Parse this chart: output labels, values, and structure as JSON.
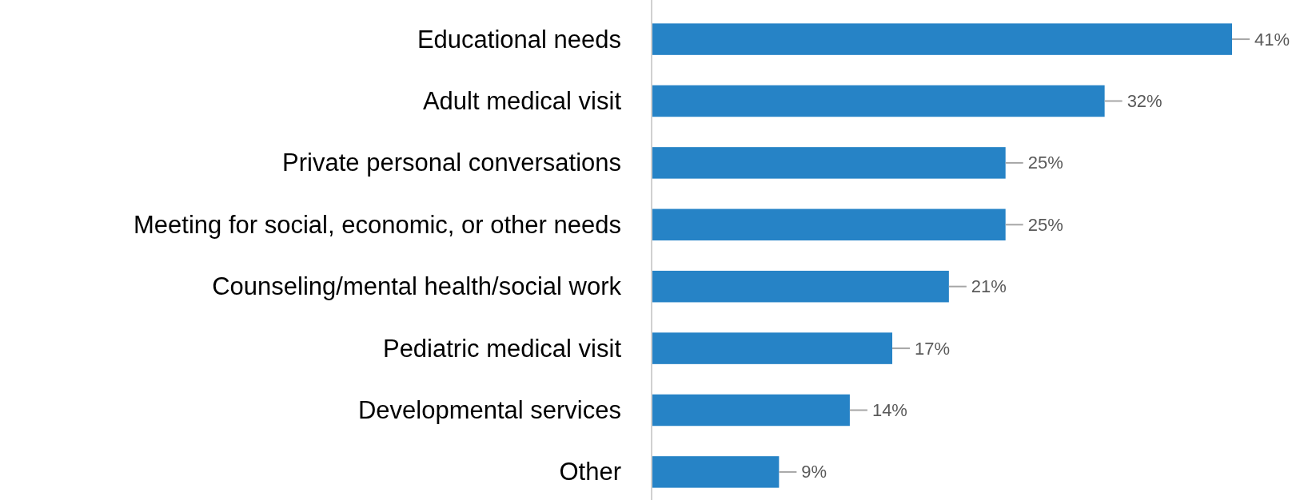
{
  "chart_data": {
    "type": "bar",
    "orientation": "horizontal",
    "categories": [
      "Educational needs",
      "Adult medical visit",
      "Private personal conversations",
      "Meeting for social, economic, or other needs",
      "Counseling/mental health/social work",
      "Pediatric medical visit",
      "Developmental services",
      "Other"
    ],
    "values": [
      41,
      32,
      25,
      25,
      21,
      17,
      14,
      9
    ],
    "value_labels": [
      "41%",
      "32%",
      "25%",
      "25%",
      "21%",
      "17%",
      "14%",
      "9%"
    ],
    "color": "#2683c6"
  }
}
